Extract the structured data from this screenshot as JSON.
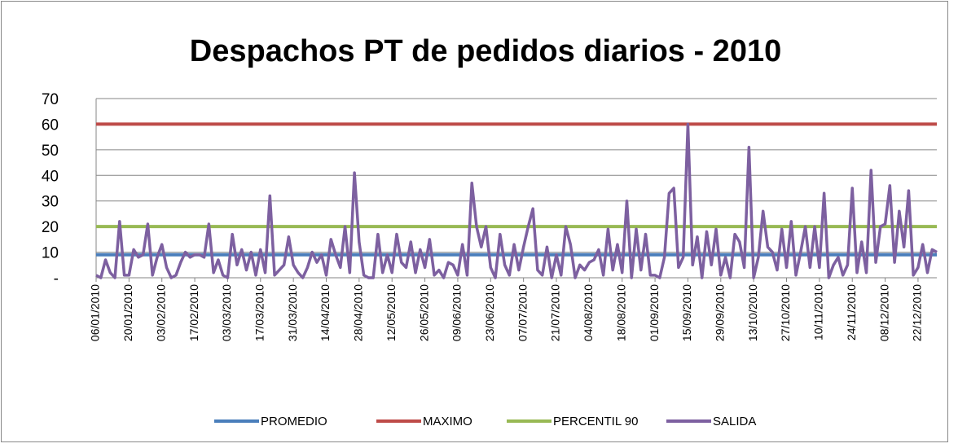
{
  "chart_data": {
    "type": "line",
    "title": "Despachos PT de pedidos diarios - 2010",
    "categories": [
      "06/01/2010",
      null,
      null,
      null,
      null,
      null,
      null,
      "20/01/2010",
      null,
      null,
      null,
      null,
      null,
      null,
      "03/02/2010",
      null,
      null,
      null,
      null,
      null,
      null,
      "17/02/2010",
      null,
      null,
      null,
      null,
      null,
      null,
      "03/03/2010",
      null,
      null,
      null,
      null,
      null,
      null,
      "17/03/2010",
      null,
      null,
      null,
      null,
      null,
      null,
      "31/03/2010",
      null,
      null,
      null,
      null,
      null,
      null,
      "14/04/2010",
      null,
      null,
      null,
      null,
      null,
      null,
      "28/04/2010",
      null,
      null,
      null,
      null,
      null,
      null,
      "12/05/2010",
      null,
      null,
      null,
      null,
      null,
      null,
      "26/05/2010",
      null,
      null,
      null,
      null,
      null,
      null,
      "09/06/2010",
      null,
      null,
      null,
      null,
      null,
      null,
      "23/06/2010",
      null,
      null,
      null,
      null,
      null,
      null,
      "07/07/2010",
      null,
      null,
      null,
      null,
      null,
      null,
      "21/07/2010",
      null,
      null,
      null,
      null,
      null,
      null,
      "04/08/2010",
      null,
      null,
      null,
      null,
      null,
      null,
      "18/08/2010",
      null,
      null,
      null,
      null,
      null,
      null,
      "01/09/2010",
      null,
      null,
      null,
      null,
      null,
      null,
      "15/09/2010",
      null,
      null,
      null,
      null,
      null,
      null,
      "29/09/2010",
      null,
      null,
      null,
      null,
      null,
      null,
      "13/10/2010",
      null,
      null,
      null,
      null,
      null,
      null,
      "27/10/2010",
      null,
      null,
      null,
      null,
      null,
      null,
      "10/11/2010",
      null,
      null,
      null,
      null,
      null,
      null,
      "24/11/2010",
      null,
      null,
      null,
      null,
      null,
      null,
      "08/12/2010",
      null,
      null,
      null,
      null,
      null,
      null,
      "22/12/2010",
      null,
      null,
      null,
      null
    ],
    "reference_lines": [
      {
        "name": "PROMEDIO",
        "value": 9,
        "color": "#4a7ebb"
      },
      {
        "name": "MAXIMO",
        "value": 60,
        "color": "#be4b48"
      },
      {
        "name": "PERCENTIL 90",
        "value": 20,
        "color": "#98b954"
      }
    ],
    "series": [
      {
        "name": "SALIDA",
        "color": "#7d60a0",
        "values": [
          1,
          0,
          7,
          2,
          0,
          22,
          1,
          1,
          11,
          8,
          9,
          21,
          1,
          8,
          13,
          4,
          0,
          1,
          6,
          10,
          8,
          9,
          9,
          8,
          21,
          2,
          7,
          1,
          0,
          17,
          5,
          11,
          3,
          10,
          1,
          11,
          2,
          32,
          1,
          3,
          5,
          16,
          5,
          2,
          0,
          4,
          10,
          6,
          9,
          1,
          15,
          9,
          4,
          20,
          2,
          41,
          14,
          1,
          0,
          0,
          17,
          2,
          9,
          2,
          17,
          6,
          4,
          14,
          2,
          11,
          4,
          15,
          1,
          3,
          0,
          6,
          5,
          1,
          13,
          1,
          37,
          20,
          12,
          20,
          4,
          0,
          17,
          5,
          1,
          13,
          3,
          12,
          20,
          27,
          3,
          1,
          12,
          0,
          9,
          1,
          20,
          13,
          0,
          5,
          3,
          6,
          7,
          11,
          1,
          19,
          3,
          13,
          2,
          30,
          0,
          19,
          3,
          17,
          1,
          1,
          0,
          8,
          33,
          35,
          4,
          8,
          60,
          5,
          16,
          0,
          18,
          5,
          19,
          1,
          8,
          0,
          17,
          14,
          4,
          51,
          0,
          8,
          26,
          12,
          10,
          3,
          19,
          4,
          22,
          1,
          10,
          20,
          4,
          20,
          4,
          33,
          0,
          5,
          8,
          1,
          5,
          35,
          2,
          14,
          2,
          42,
          6,
          20,
          21,
          36,
          6,
          26,
          12,
          34,
          1,
          4,
          13,
          2,
          11,
          10
        ]
      }
    ],
    "ylim": [
      0,
      70
    ],
    "yticks": [
      {
        "value": 0,
        "label": "-"
      },
      10,
      20,
      30,
      40,
      50,
      60,
      70
    ],
    "grid": true
  }
}
